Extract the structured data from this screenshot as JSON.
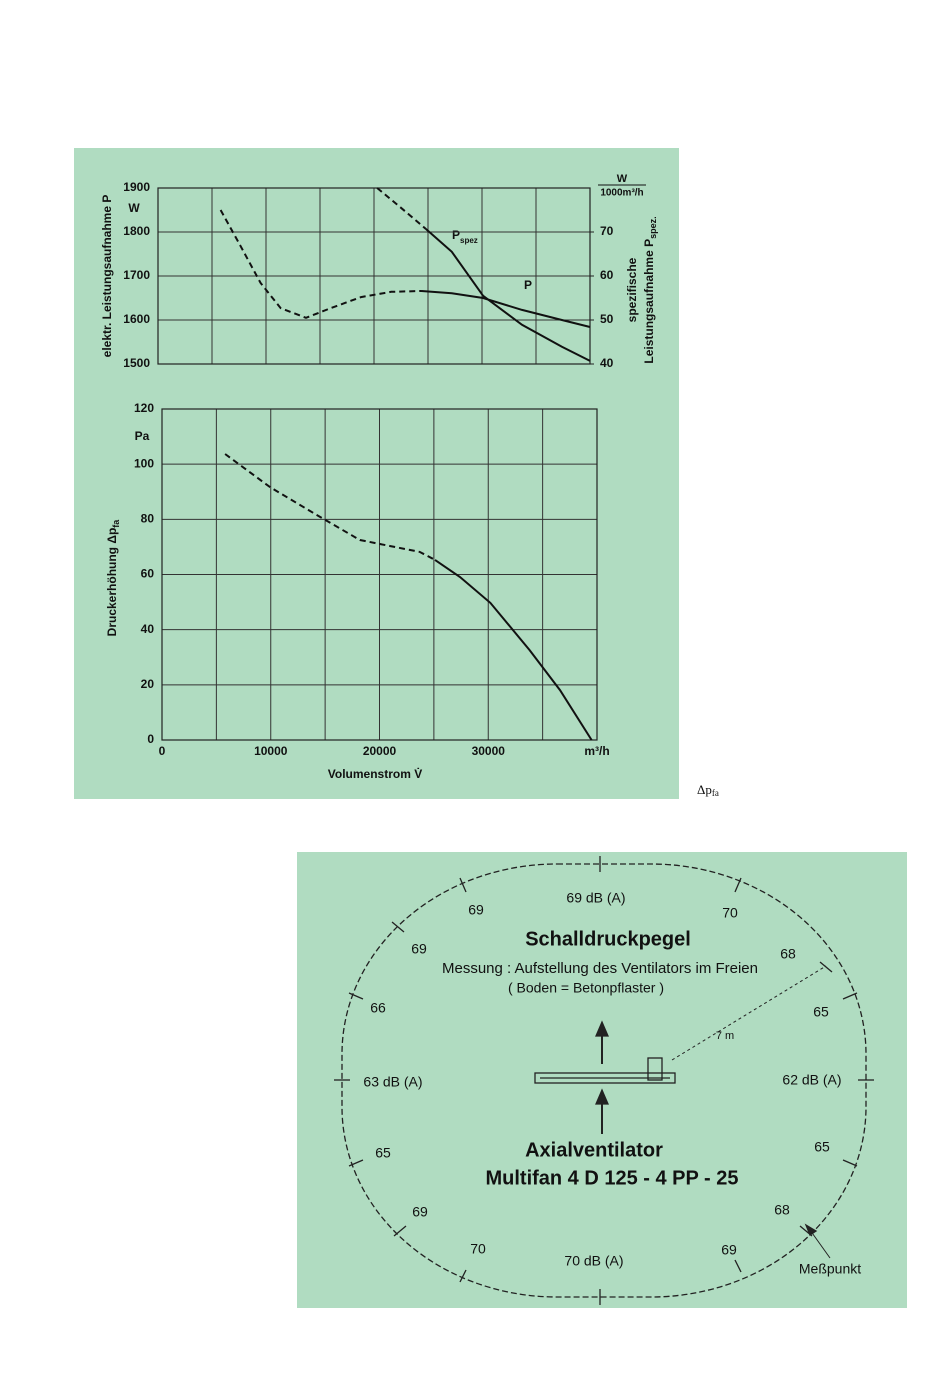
{
  "chart_data": [
    {
      "type": "line",
      "ylabel": "elektr. Leistungsaufnahme P",
      "y_unit": "W",
      "y2label": "spezifische",
      "y2label_2": "Leistungsaufnahme P",
      "y2label_sub": "spez.",
      "y2_unit": "W",
      "y2_unit_denominator": "1000m³/h",
      "xlim": [
        0,
        40000
      ],
      "xgrid": [
        5000,
        10000,
        15000,
        20000,
        25000,
        30000,
        35000
      ],
      "ylim": [
        1500,
        1900
      ],
      "yticks": [
        1500,
        1600,
        1700,
        1800,
        1900
      ],
      "y2lim": [
        40,
        80
      ],
      "y2ticks": [
        40,
        50,
        60,
        70
      ],
      "grid": true,
      "series": [
        {
          "name": "P",
          "axis": "y",
          "color": "#111111",
          "pieces": [
            {
              "style": "dashed",
              "x": [
                5800,
                7600,
                9500,
                11350,
                13700,
                16000,
                18800,
                21600,
                24400
              ],
              "values": [
                1850,
                1770,
                1684,
                1627,
                1605,
                1627,
                1652,
                1664,
                1666
              ]
            },
            {
              "style": "solid",
              "x": [
                24400,
                27200,
                30100,
                33700,
                37400,
                40000
              ],
              "values": [
                1666,
                1661,
                1650,
                1623,
                1600,
                1584
              ]
            }
          ]
        },
        {
          "name": "P",
          "name_sub": "spez",
          "axis": "y2",
          "color": "#111111",
          "pieces": [
            {
              "style": "dashed",
              "x": [
                20300,
                22500,
                24800
              ],
              "values": [
                80,
                75.5,
                70.7
              ]
            },
            {
              "style": "solid",
              "x": [
                24800,
                27200,
                30100,
                33700,
                37400,
                40000
              ],
              "values": [
                70.7,
                65.5,
                55.5,
                48.9,
                43.9,
                40.7
              ]
            }
          ]
        }
      ]
    },
    {
      "type": "line",
      "ylabel": "Druckerhöhung Δp",
      "ylabel_sub": "fa",
      "y_unit": "Pa",
      "xlabel": "Volumenstrom V̇",
      "xlim": [
        0,
        40000
      ],
      "xticks": [
        0,
        10000,
        20000,
        30000,
        {
          "value": 40000,
          "label": "m³/h"
        }
      ],
      "xgrid": [
        5000,
        15000,
        25000,
        35000
      ],
      "ylim": [
        0,
        120
      ],
      "yticks": [
        0,
        20,
        40,
        60,
        80,
        100,
        120
      ],
      "grid": true,
      "series": [
        {
          "color": "#111111",
          "pieces": [
            {
              "style": "dashed",
              "x": [
                5800,
                9930,
                14530,
                18200,
                21000,
                23700,
                25100
              ],
              "values": [
                103.7,
                91.7,
                80.9,
                72.5,
                70.3,
                68.2,
                65.3
              ]
            },
            {
              "style": "solid",
              "x": [
                25100,
                27400,
                30200,
                33800,
                36600,
                39500
              ],
              "values": [
                65.3,
                59.1,
                49.7,
                32.6,
                18.1,
                0
              ]
            }
          ]
        }
      ]
    }
  ],
  "page_note": {
    "text": "Δp",
    "sub": "fa"
  },
  "diagram": {
    "heading": "Schalldruckpegel",
    "measurement": "Messung : Aufstellung des Ventilators im Freien",
    "ground": "( Boden = Betonpflaster )",
    "fan_type": "Axialventilator",
    "model": "Multifan 4 D 125 - 4 PP - 25",
    "distance": "7 m",
    "point_label": "Meßpunkt",
    "levels": [
      "69 dB (A)",
      "69",
      "70",
      "69",
      "68",
      "66",
      "65",
      "63 dB (A)",
      "62 dB (A)",
      "65",
      "65",
      "69",
      "68",
      "70",
      "69",
      "70 dB (A)"
    ]
  }
}
